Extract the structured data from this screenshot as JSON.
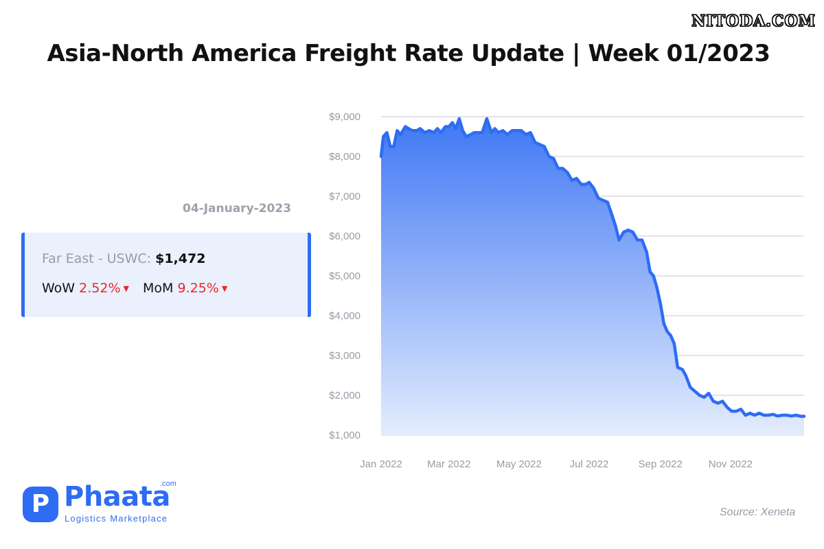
{
  "watermark": "NITODA.COM",
  "title": "Asia-North America Freight Rate Update | Week 01/2023",
  "date": "04-January-2023",
  "card": {
    "lane": "Far East - USWC:",
    "rate": "$1,472",
    "wow_label": "WoW",
    "wow_value": "2.52%",
    "mom_label": "MoM",
    "mom_value": "9.25%",
    "trend_icon": "caret-down-icon"
  },
  "logo": {
    "name": "Phaata",
    "com": ".com",
    "tagline": "Logistics Marketplace"
  },
  "source": "Source: Xeneta",
  "colors": {
    "line": "#2e6cf3",
    "accent": "#2e6cf3",
    "negative": "#e8262a",
    "card_bg": "#eaf0fc"
  },
  "chart_data": {
    "type": "area",
    "title": "",
    "xlabel": "",
    "ylabel": "",
    "y_tick_labels": [
      "$1,000",
      "$2,000",
      "$3,000",
      "$4,000",
      "$5,000",
      "$6,000",
      "$7,000",
      "$8,000",
      "$9,000"
    ],
    "y_ticks": [
      1000,
      2000,
      3000,
      4000,
      5000,
      6000,
      7000,
      8000,
      9000
    ],
    "ylim": [
      1000,
      9000
    ],
    "x_tick_labels": [
      "Jan 2022",
      "Mar 2022",
      "May 2022",
      "Jul 2022",
      "Sep 2022",
      "Nov 2022"
    ],
    "x_ticks": [
      "2022-01-01",
      "2022-03-01",
      "2022-05-01",
      "2022-07-01",
      "2022-09-01",
      "2022-11-01"
    ],
    "xlim": [
      "2022-01-01",
      "2023-01-04"
    ],
    "grid": true,
    "series": [
      {
        "x": [
          "2022-01-01",
          "2022-01-03",
          "2022-01-06",
          "2022-01-09",
          "2022-01-12",
          "2022-01-15",
          "2022-01-18",
          "2022-01-22",
          "2022-01-25",
          "2022-01-28",
          "2022-02-01",
          "2022-02-04",
          "2022-02-08",
          "2022-02-12",
          "2022-02-16",
          "2022-02-19",
          "2022-02-22",
          "2022-02-26",
          "2022-03-01",
          "2022-03-04",
          "2022-03-07",
          "2022-03-10",
          "2022-03-13",
          "2022-03-16",
          "2022-03-20",
          "2022-03-23",
          "2022-03-26",
          "2022-03-30",
          "2022-04-03",
          "2022-04-07",
          "2022-04-10",
          "2022-04-13",
          "2022-04-17",
          "2022-04-21",
          "2022-04-25",
          "2022-04-29",
          "2022-05-03",
          "2022-05-07",
          "2022-05-11",
          "2022-05-15",
          "2022-05-19",
          "2022-05-23",
          "2022-05-27",
          "2022-05-31",
          "2022-06-04",
          "2022-06-08",
          "2022-06-12",
          "2022-06-16",
          "2022-06-20",
          "2022-06-24",
          "2022-06-28",
          "2022-07-01",
          "2022-07-05",
          "2022-07-09",
          "2022-07-13",
          "2022-07-17",
          "2022-07-20",
          "2022-07-24",
          "2022-07-27",
          "2022-07-31",
          "2022-08-04",
          "2022-08-08",
          "2022-08-12",
          "2022-08-16",
          "2022-08-20",
          "2022-08-23",
          "2022-08-26",
          "2022-08-29",
          "2022-09-01",
          "2022-09-04",
          "2022-09-07",
          "2022-09-10",
          "2022-09-13",
          "2022-09-16",
          "2022-09-20",
          "2022-09-23",
          "2022-09-27",
          "2022-10-01",
          "2022-10-05",
          "2022-10-09",
          "2022-10-13",
          "2022-10-17",
          "2022-10-21",
          "2022-10-25",
          "2022-10-29",
          "2022-11-02",
          "2022-11-06",
          "2022-11-10",
          "2022-11-14",
          "2022-11-18",
          "2022-11-22",
          "2022-11-26",
          "2022-11-30",
          "2022-12-04",
          "2022-12-08",
          "2022-12-12",
          "2022-12-16",
          "2022-12-20",
          "2022-12-24",
          "2022-12-28",
          "2023-01-01",
          "2023-01-04"
        ],
        "y": [
          8000,
          8500,
          8600,
          8250,
          8250,
          8650,
          8550,
          8750,
          8700,
          8650,
          8650,
          8700,
          8600,
          8650,
          8600,
          8700,
          8600,
          8750,
          8750,
          8850,
          8700,
          8950,
          8650,
          8500,
          8550,
          8600,
          8600,
          8600,
          8950,
          8600,
          8700,
          8600,
          8650,
          8550,
          8650,
          8650,
          8650,
          8550,
          8600,
          8350,
          8300,
          8250,
          8000,
          7950,
          7700,
          7700,
          7600,
          7400,
          7450,
          7300,
          7300,
          7350,
          7200,
          6950,
          6900,
          6850,
          6600,
          6250,
          5900,
          6100,
          6150,
          6100,
          5900,
          5900,
          5600,
          5100,
          5000,
          4700,
          4300,
          3800,
          3600,
          3500,
          3300,
          2700,
          2650,
          2500,
          2200,
          2100,
          2000,
          1950,
          2050,
          1850,
          1800,
          1850,
          1700,
          1600,
          1600,
          1650,
          1500,
          1550,
          1500,
          1550,
          1500,
          1500,
          1520,
          1480,
          1500,
          1500,
          1480,
          1500,
          1472,
          1472
        ]
      }
    ]
  }
}
